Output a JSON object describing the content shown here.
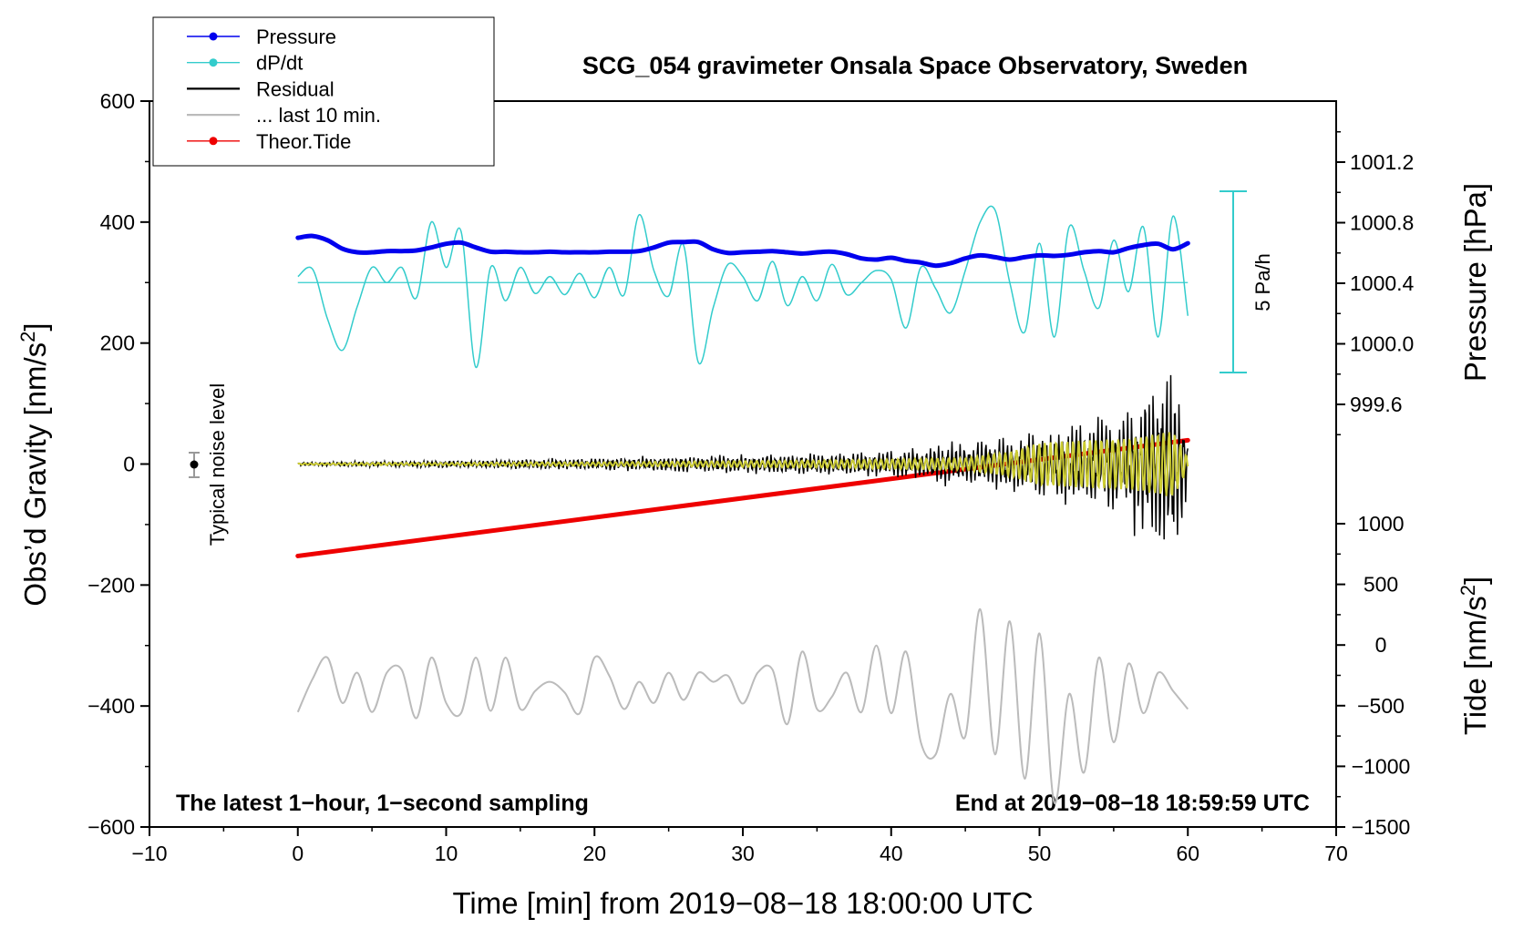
{
  "chart_data": {
    "type": "line",
    "title": "SCG_054 gravimeter Onsala Space Observatory, Sweden",
    "xlabel": "Time [min] from 2019−08−18 18:00:00 UTC",
    "ylabel_left": "Obs’d Gravity [nm/s²]",
    "ylabel_right_top": "Pressure [hPa]",
    "ylabel_right_bottom": "Tide [nm/s²]",
    "xlim": [
      -10,
      70
    ],
    "ylim": [
      -600,
      600
    ],
    "x_ticks": [
      "−10",
      "0",
      "10",
      "20",
      "30",
      "40",
      "50",
      "60",
      "70"
    ],
    "y_ticks": [
      "600",
      "400",
      "200",
      "0",
      "−200",
      "−400",
      "−600"
    ],
    "pressure_ticks": [
      "1001.2",
      "1000.8",
      "1000.4",
      "1000.0",
      "999.6"
    ],
    "tide_ticks": [
      "1000",
      "500",
      "0",
      "−500",
      "−1000",
      "−1500"
    ],
    "annotations": {
      "bottom_left": "The latest 1−hour, 1−second sampling",
      "bottom_right": "End at 2019−08−18 18:59:59 UTC",
      "noise": "Typical noise level",
      "scale_bar": "5 Pa/h"
    },
    "legend": {
      "position": "top-left",
      "entries": [
        {
          "label": "Pressure",
          "color": "#0000ee",
          "style": "line-dot"
        },
        {
          "label": "dP/dt",
          "color": "#33cccc",
          "style": "line-dot"
        },
        {
          "label": "Residual",
          "color": "#000000",
          "style": "line"
        },
        {
          "label": "... last 10 min.",
          "color": "#bbbbbb",
          "style": "line"
        },
        {
          "label": "Theor.Tide",
          "color": "#ee0000",
          "style": "line-dot"
        }
      ]
    },
    "series": [
      {
        "name": "Pressure",
        "color": "#0000ee",
        "units": "nm/s2-axis",
        "x": [
          0,
          1,
          2,
          3,
          4,
          5,
          6,
          7,
          8,
          9,
          10,
          11,
          12,
          13,
          14,
          15,
          16,
          17,
          18,
          19,
          20,
          21,
          22,
          23,
          24,
          25,
          26,
          27,
          28,
          29,
          30,
          31,
          32,
          33,
          34,
          35,
          36,
          37,
          38,
          39,
          40,
          41,
          42,
          43,
          44,
          45,
          46,
          47,
          48,
          49,
          50,
          51,
          52,
          53,
          54,
          55,
          56,
          57,
          58,
          59,
          60
        ],
        "values": [
          374,
          377,
          370,
          356,
          350,
          350,
          352,
          352,
          353,
          358,
          364,
          366,
          358,
          351,
          351,
          350,
          350,
          351,
          350,
          350,
          350,
          351,
          351,
          352,
          358,
          366,
          367,
          367,
          355,
          349,
          350,
          351,
          352,
          350,
          348,
          350,
          351,
          347,
          340,
          338,
          341,
          336,
          333,
          328,
          332,
          340,
          345,
          342,
          338,
          342,
          345,
          344,
          346,
          350,
          352,
          350,
          357,
          362,
          364,
          355,
          365
        ]
      },
      {
        "name": "dP/dt",
        "color": "#33cccc",
        "units": "nm/s2-axis",
        "baseline": 300,
        "x": [
          0,
          1,
          2,
          3,
          4,
          5,
          6,
          7,
          8,
          9,
          10,
          11,
          12,
          13,
          14,
          15,
          16,
          17,
          18,
          19,
          20,
          21,
          22,
          23,
          24,
          25,
          26,
          27,
          28,
          29,
          30,
          31,
          32,
          33,
          34,
          35,
          36,
          37,
          38,
          39,
          40,
          41,
          42,
          43,
          44,
          45,
          46,
          47,
          48,
          49,
          50,
          51,
          52,
          53,
          54,
          55,
          56,
          57,
          58,
          59,
          60
        ],
        "values": [
          310,
          322,
          240,
          188,
          260,
          325,
          300,
          325,
          275,
          400,
          325,
          385,
          160,
          325,
          270,
          325,
          282,
          310,
          280,
          315,
          275,
          325,
          280,
          412,
          320,
          278,
          362,
          168,
          258,
          330,
          310,
          270,
          335,
          262,
          310,
          270,
          330,
          280,
          300,
          320,
          305,
          225,
          325,
          290,
          250,
          320,
          400,
          420,
          300,
          218,
          365,
          210,
          392,
          320,
          258,
          370,
          285,
          392,
          210,
          410,
          245
        ]
      },
      {
        "name": "Residual",
        "color": "#000000",
        "units": "nm/s2",
        "x": [
          0,
          1,
          2,
          3,
          4,
          5,
          6,
          7,
          8,
          9,
          10,
          11,
          12,
          13,
          14,
          15,
          16,
          17,
          18,
          19,
          20,
          21,
          22,
          23,
          24,
          25,
          26,
          27,
          28,
          29,
          30,
          31,
          32,
          33,
          34,
          35,
          36,
          37,
          38,
          39,
          40,
          41,
          42,
          43,
          44,
          45,
          46,
          47,
          48,
          49,
          50,
          51,
          52,
          53,
          54,
          55,
          56,
          57,
          58,
          59,
          60
        ],
        "amplitude": [
          3,
          3,
          3,
          4,
          4,
          4,
          4,
          5,
          5,
          5,
          6,
          6,
          6,
          7,
          7,
          8,
          8,
          8,
          9,
          9,
          10,
          10,
          11,
          11,
          12,
          12,
          13,
          13,
          13,
          14,
          14,
          15,
          15,
          16,
          16,
          17,
          17,
          18,
          19,
          20,
          21,
          23,
          26,
          30,
          34,
          36,
          38,
          40,
          45,
          50,
          55,
          58,
          60,
          65,
          70,
          78,
          90,
          110,
          150,
          170,
          70
        ]
      },
      {
        "name": "Filtered",
        "color": "#cccc33",
        "units": "nm/s2",
        "x": [
          0,
          5,
          10,
          15,
          20,
          25,
          30,
          35,
          40,
          45,
          48,
          50,
          52,
          54,
          56,
          58,
          59,
          60
        ],
        "amplitude": [
          1,
          2,
          2,
          3,
          3,
          4,
          5,
          6,
          8,
          10,
          20,
          35,
          38,
          40,
          42,
          50,
          55,
          10
        ]
      },
      {
        "name": "... last 10 min.",
        "color": "#bbbbbb",
        "units": "nm/s2-axis",
        "x": [
          0,
          1,
          2,
          3,
          4,
          5,
          6,
          7,
          8,
          9,
          10,
          11,
          12,
          13,
          14,
          15,
          16,
          17,
          18,
          19,
          20,
          21,
          22,
          23,
          24,
          25,
          26,
          27,
          28,
          29,
          30,
          31,
          32,
          33,
          34,
          35,
          36,
          37,
          38,
          39,
          40,
          41,
          42,
          43,
          44,
          45,
          46,
          47,
          48,
          49,
          50,
          51,
          52,
          53,
          54,
          55,
          56,
          57,
          58,
          59,
          60
        ],
        "values": [
          -410,
          -355,
          -320,
          -395,
          -345,
          -410,
          -345,
          -340,
          -420,
          -320,
          -395,
          -412,
          -320,
          -408,
          -320,
          -405,
          -375,
          -360,
          -378,
          -412,
          -320,
          -350,
          -405,
          -360,
          -395,
          -345,
          -390,
          -345,
          -360,
          -350,
          -396,
          -345,
          -340,
          -430,
          -310,
          -405,
          -385,
          -345,
          -410,
          -300,
          -412,
          -310,
          -460,
          -480,
          -380,
          -450,
          -240,
          -480,
          -260,
          -520,
          -280,
          -560,
          -380,
          -510,
          -320,
          -460,
          -330,
          -412,
          -345,
          -375,
          -405
        ]
      },
      {
        "name": "Theor.Tide",
        "color": "#ee0000",
        "units": "nm/s2",
        "x": [
          0,
          60
        ],
        "values": [
          -155,
          45
        ]
      }
    ]
  }
}
